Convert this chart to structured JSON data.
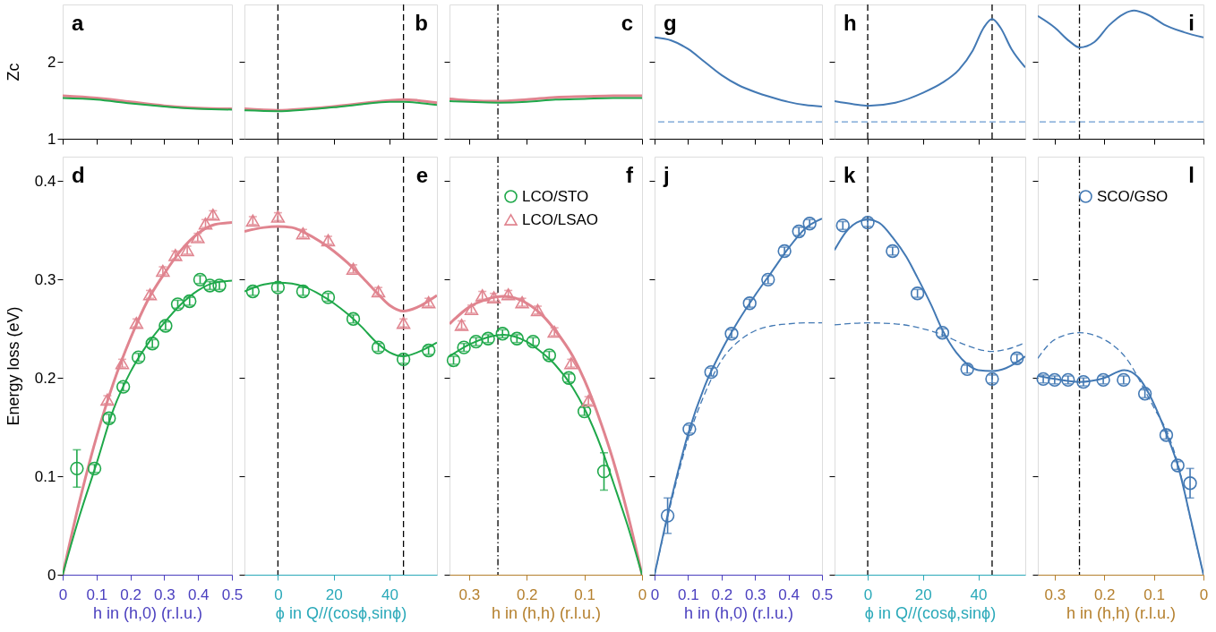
{
  "chart_data": [
    {
      "type": "line",
      "annotations": [
        "a"
      ],
      "ylabel": "Zc",
      "xlim": [
        0,
        0.5
      ],
      "xticks": [
        0,
        0.1,
        0.2,
        0.3,
        0.4,
        0.5
      ],
      "ylim": [
        1,
        2.75
      ],
      "yticks": [
        1,
        2
      ],
      "tick_labels": "y",
      "grid": false,
      "legend": false,
      "series": [
        {
          "color": "#e0848f",
          "x": [
            0,
            0.1,
            0.2,
            0.3,
            0.4,
            0.5
          ],
          "values": [
            1.56,
            1.53,
            1.48,
            1.43,
            1.4,
            1.39
          ]
        },
        {
          "color": "#1fa84a",
          "x": [
            0,
            0.1,
            0.2,
            0.3,
            0.4,
            0.5
          ],
          "values": [
            1.53,
            1.51,
            1.46,
            1.42,
            1.39,
            1.38
          ]
        }
      ]
    },
    {
      "type": "line",
      "annotations": [
        "b"
      ],
      "xlim": [
        -12,
        57
      ],
      "xticks": [
        0,
        20,
        40
      ],
      "ylim": [
        1,
        2.75
      ],
      "yticks": [
        1,
        2
      ],
      "tick_labels": false,
      "grid": false,
      "legend": false,
      "ref_lines": [
        {
          "axis": "x",
          "value": 0,
          "color": "#000000",
          "line_style": "dashed"
        },
        {
          "axis": "x",
          "value": 45,
          "color": "#000000",
          "line_style": "dashed"
        }
      ],
      "series": [
        {
          "color": "#e0848f",
          "x": [
            -12,
            0,
            10,
            20,
            30,
            40,
            45,
            50,
            57
          ],
          "values": [
            1.39,
            1.37,
            1.39,
            1.42,
            1.46,
            1.5,
            1.51,
            1.5,
            1.47
          ]
        },
        {
          "color": "#1fa84a",
          "x": [
            -12,
            0,
            10,
            20,
            30,
            40,
            45,
            50,
            57
          ],
          "values": [
            1.37,
            1.36,
            1.38,
            1.41,
            1.45,
            1.48,
            1.48,
            1.47,
            1.44
          ]
        }
      ]
    },
    {
      "type": "line",
      "annotations": [
        "c"
      ],
      "xlim": [
        0.334,
        0
      ],
      "xticks": [
        0.3,
        0.2,
        0.1,
        0
      ],
      "ylim": [
        1,
        2.75
      ],
      "yticks": [
        1,
        2
      ],
      "tick_labels": false,
      "grid": false,
      "legend": false,
      "ref_lines": [
        {
          "axis": "x",
          "value": 0.25,
          "color": "#000000",
          "line_style": "dashdot"
        }
      ],
      "series": [
        {
          "color": "#e0848f",
          "x": [
            0.334,
            0.3,
            0.25,
            0.2,
            0.15,
            0.1,
            0.05,
            0
          ],
          "values": [
            1.52,
            1.5,
            1.49,
            1.51,
            1.54,
            1.55,
            1.56,
            1.56
          ]
        },
        {
          "color": "#1fa84a",
          "x": [
            0.334,
            0.3,
            0.25,
            0.2,
            0.15,
            0.1,
            0.05,
            0
          ],
          "values": [
            1.49,
            1.48,
            1.47,
            1.48,
            1.51,
            1.52,
            1.53,
            1.53
          ]
        }
      ]
    },
    {
      "type": "line",
      "annotations": [
        "g"
      ],
      "xlim": [
        0,
        0.5
      ],
      "xticks": [
        0,
        0.1,
        0.2,
        0.3,
        0.4,
        0.5
      ],
      "ylim": [
        1,
        2.75
      ],
      "yticks": [
        1,
        2
      ],
      "tick_labels": false,
      "grid": false,
      "legend": false,
      "ref_lines": [
        {
          "axis": "y",
          "value": 1.22,
          "color": "#6a9bd1",
          "line_style": "dashed"
        }
      ],
      "series": [
        {
          "color": "#4379b4",
          "x": [
            0,
            0.05,
            0.1,
            0.15,
            0.2,
            0.25,
            0.3,
            0.35,
            0.4,
            0.45,
            0.5
          ],
          "values": [
            2.32,
            2.28,
            2.17,
            2.0,
            1.83,
            1.7,
            1.61,
            1.54,
            1.48,
            1.44,
            1.42
          ]
        }
      ]
    },
    {
      "type": "line",
      "annotations": [
        "h"
      ],
      "xlim": [
        -12,
        57
      ],
      "xticks": [
        0,
        20,
        40
      ],
      "ylim": [
        1,
        2.75
      ],
      "yticks": [
        1,
        2
      ],
      "tick_labels": false,
      "grid": false,
      "legend": false,
      "ref_lines": [
        {
          "axis": "x",
          "value": 0,
          "color": "#000000",
          "line_style": "dashed"
        },
        {
          "axis": "x",
          "value": 45,
          "color": "#000000",
          "line_style": "dashed"
        },
        {
          "axis": "y",
          "value": 1.22,
          "color": "#6a9bd1",
          "line_style": "dashed"
        }
      ],
      "series": [
        {
          "color": "#4379b4",
          "x": [
            -12,
            -5,
            0,
            10,
            20,
            27,
            33,
            38,
            42,
            45,
            48,
            52,
            57
          ],
          "values": [
            1.49,
            1.45,
            1.43,
            1.47,
            1.6,
            1.73,
            1.9,
            2.15,
            2.45,
            2.56,
            2.45,
            2.17,
            1.93
          ]
        }
      ]
    },
    {
      "type": "line",
      "annotations": [
        "i"
      ],
      "xlim": [
        0.334,
        0
      ],
      "xticks": [
        0.3,
        0.2,
        0.1,
        0
      ],
      "ylim": [
        1,
        2.75
      ],
      "yticks": [
        1,
        2
      ],
      "tick_labels": false,
      "grid": false,
      "legend": false,
      "ref_lines": [
        {
          "axis": "x",
          "value": 0.25,
          "color": "#000000",
          "line_style": "dashdot"
        },
        {
          "axis": "y",
          "value": 1.22,
          "color": "#6a9bd1",
          "line_style": "dashed"
        }
      ],
      "series": [
        {
          "color": "#4379b4",
          "x": [
            0.334,
            0.3,
            0.27,
            0.25,
            0.22,
            0.19,
            0.16,
            0.14,
            0.11,
            0.08,
            0.04,
            0
          ],
          "values": [
            2.6,
            2.45,
            2.27,
            2.19,
            2.26,
            2.48,
            2.63,
            2.67,
            2.61,
            2.49,
            2.39,
            2.32
          ]
        }
      ]
    },
    {
      "type": "scatter",
      "annotations": [
        "d"
      ],
      "ylabel": "Energy loss (eV)",
      "xlabel": "h in (h,0) (r.l.u.)",
      "xlim": [
        0,
        0.5
      ],
      "xticks": [
        0,
        0.1,
        0.2,
        0.3,
        0.4,
        0.5
      ],
      "ylim": [
        0,
        0.425
      ],
      "yticks": [
        0,
        0.1,
        0.2,
        0.3,
        0.4
      ],
      "grid": false,
      "legend": false,
      "series": [
        {
          "type": "line",
          "color": "#e0848f",
          "x": [
            0,
            0.05,
            0.1,
            0.15,
            0.2,
            0.25,
            0.3,
            0.35,
            0.4,
            0.45,
            0.5
          ],
          "values": [
            0,
            0.075,
            0.14,
            0.195,
            0.24,
            0.278,
            0.306,
            0.33,
            0.347,
            0.356,
            0.358
          ]
        },
        {
          "type": "line",
          "color": "#1fa84a",
          "x": [
            0,
            0.05,
            0.1,
            0.15,
            0.2,
            0.25,
            0.3,
            0.35,
            0.4,
            0.45,
            0.5
          ],
          "values": [
            0,
            0.06,
            0.113,
            0.168,
            0.206,
            0.234,
            0.256,
            0.275,
            0.289,
            0.297,
            0.299
          ]
        },
        {
          "type": "scatter",
          "marker": "triangle",
          "color": "#e0848f",
          "x": [
            0.132,
            0.176,
            0.218,
            0.258,
            0.296,
            0.333,
            0.368,
            0.399,
            0.422,
            0.444
          ],
          "values": [
            0.178,
            0.215,
            0.256,
            0.285,
            0.309,
            0.325,
            0.33,
            0.343,
            0.357,
            0.366
          ],
          "errors": [
            0.004,
            0.004,
            0.004,
            0.004,
            0.004,
            0.004,
            0.004,
            0.004,
            0.004,
            0.004
          ]
        },
        {
          "type": "scatter",
          "marker": "circle",
          "color": "#1fa84a",
          "x": [
            0.042,
            0.094,
            0.137,
            0.179,
            0.224,
            0.265,
            0.304,
            0.34,
            0.375,
            0.406,
            0.435,
            0.463
          ],
          "values": [
            0.108,
            0.108,
            0.159,
            0.191,
            0.221,
            0.235,
            0.253,
            0.275,
            0.278,
            0.3,
            0.294,
            0.294
          ],
          "errors": [
            0.019,
            0.004,
            0.004,
            0.004,
            0.004,
            0.004,
            0.004,
            0.004,
            0.004,
            0.004,
            0.004,
            0.004
          ]
        }
      ]
    },
    {
      "type": "scatter",
      "annotations": [
        "e"
      ],
      "xlabel": "ϕ in Q//(cosϕ,sinϕ)",
      "xlim": [
        -12,
        57
      ],
      "xticks": [
        0,
        20,
        40
      ],
      "ylim": [
        0,
        0.425
      ],
      "yticks": [
        0,
        0.1,
        0.2,
        0.3,
        0.4
      ],
      "tick_labels": "x",
      "grid": false,
      "legend": false,
      "ref_lines": [
        {
          "axis": "x",
          "value": 0,
          "color": "#000000",
          "line_style": "dashed"
        },
        {
          "axis": "x",
          "value": 45,
          "color": "#000000",
          "line_style": "dashed"
        }
      ],
      "series": [
        {
          "type": "line",
          "color": "#e0848f",
          "x": [
            -12,
            -5,
            0,
            5,
            10,
            15,
            20,
            25,
            30,
            35,
            40,
            45,
            50,
            57
          ],
          "values": [
            0.349,
            0.353,
            0.354,
            0.353,
            0.347,
            0.339,
            0.329,
            0.317,
            0.303,
            0.288,
            0.274,
            0.268,
            0.272,
            0.284
          ]
        },
        {
          "type": "line",
          "color": "#1fa84a",
          "x": [
            -12,
            -5,
            0,
            5,
            10,
            15,
            20,
            25,
            30,
            35,
            40,
            45,
            50,
            57
          ],
          "values": [
            0.288,
            0.295,
            0.297,
            0.296,
            0.292,
            0.285,
            0.276,
            0.265,
            0.252,
            0.237,
            0.226,
            0.222,
            0.226,
            0.236
          ]
        },
        {
          "type": "scatter",
          "marker": "triangle",
          "color": "#e0848f",
          "x": [
            -9,
            0,
            9,
            18,
            27,
            36,
            45,
            54
          ],
          "values": [
            0.36,
            0.364,
            0.347,
            0.34,
            0.311,
            0.288,
            0.256,
            0.277
          ],
          "errors": [
            0.004,
            0.004,
            0.004,
            0.004,
            0.004,
            0.004,
            0.004,
            0.004
          ]
        },
        {
          "type": "scatter",
          "marker": "circle",
          "color": "#1fa84a",
          "x": [
            -9,
            0,
            9,
            18,
            27,
            36,
            45,
            54
          ],
          "values": [
            0.288,
            0.292,
            0.288,
            0.282,
            0.26,
            0.231,
            0.219,
            0.228
          ],
          "errors": [
            0.004,
            0.004,
            0.004,
            0.004,
            0.004,
            0.004,
            0.004,
            0.004
          ]
        }
      ]
    },
    {
      "type": "scatter",
      "annotations": [
        "f"
      ],
      "xlabel": "h in (h,h) (r.l.u.)",
      "xlim": [
        0.334,
        0
      ],
      "xticks": [
        0.3,
        0.2,
        0.1,
        0
      ],
      "ylim": [
        0,
        0.425
      ],
      "yticks": [
        0,
        0.1,
        0.2,
        0.3,
        0.4
      ],
      "tick_labels": "x",
      "grid": false,
      "legend": "top right",
      "ref_lines": [
        {
          "axis": "x",
          "value": 0.25,
          "color": "#000000",
          "line_style": "dashdot"
        }
      ],
      "series": [
        {
          "type": "line",
          "color": "#e0848f",
          "x": [
            0.334,
            0.3,
            0.27,
            0.24,
            0.2,
            0.17,
            0.15,
            0.12,
            0.1,
            0.07,
            0.05,
            0.025,
            0
          ],
          "values": [
            0.255,
            0.272,
            0.28,
            0.283,
            0.276,
            0.262,
            0.248,
            0.222,
            0.198,
            0.152,
            0.116,
            0.062,
            0
          ]
        },
        {
          "type": "line",
          "color": "#1fa84a",
          "x": [
            0.334,
            0.3,
            0.27,
            0.24,
            0.2,
            0.17,
            0.15,
            0.12,
            0.1,
            0.07,
            0.05,
            0.025,
            0
          ],
          "values": [
            0.222,
            0.234,
            0.241,
            0.244,
            0.237,
            0.224,
            0.213,
            0.19,
            0.169,
            0.128,
            0.094,
            0.05,
            0
          ]
        },
        {
          "type": "scatter",
          "name": "LCO/STO",
          "marker": "circle",
          "color": "#1fa84a",
          "x": [
            0.327,
            0.309,
            0.288,
            0.267,
            0.242,
            0.217,
            0.189,
            0.161,
            0.127,
            0.1,
            0.066
          ],
          "values": [
            0.218,
            0.231,
            0.237,
            0.24,
            0.245,
            0.24,
            0.237,
            0.223,
            0.2,
            0.166,
            0.105
          ],
          "errors": [
            0.004,
            0.004,
            0.004,
            0.004,
            0.004,
            0.004,
            0.004,
            0.004,
            0.004,
            0.004,
            0.019
          ]
        },
        {
          "type": "scatter",
          "name": "LCO/LSAO",
          "marker": "triangle",
          "color": "#e0848f",
          "x": [
            0.313,
            0.296,
            0.277,
            0.257,
            0.232,
            0.208,
            0.181,
            0.152,
            0.123,
            0.093
          ],
          "values": [
            0.254,
            0.27,
            0.284,
            0.282,
            0.285,
            0.277,
            0.269,
            0.247,
            0.215,
            0.177
          ],
          "errors": [
            0.004,
            0.004,
            0.004,
            0.004,
            0.004,
            0.004,
            0.004,
            0.004,
            0.004,
            0.004
          ]
        }
      ]
    },
    {
      "type": "scatter",
      "annotations": [
        "j"
      ],
      "xlabel": "h in (h,0) (r.l.u.)",
      "xlim": [
        0,
        0.5
      ],
      "xticks": [
        0,
        0.1,
        0.2,
        0.3,
        0.4,
        0.5
      ],
      "ylim": [
        0,
        0.425
      ],
      "yticks": [
        0,
        0.1,
        0.2,
        0.3,
        0.4
      ],
      "tick_labels": "x",
      "grid": false,
      "legend": false,
      "series": [
        {
          "type": "line",
          "line_style": "dashed",
          "color": "#4379b4",
          "x": [
            0,
            0.05,
            0.1,
            0.15,
            0.2,
            0.25,
            0.3,
            0.35,
            0.4,
            0.45,
            0.5
          ],
          "values": [
            0,
            0.074,
            0.138,
            0.184,
            0.218,
            0.237,
            0.248,
            0.253,
            0.255,
            0.256,
            0.256
          ]
        },
        {
          "type": "line",
          "color": "#4379b4",
          "x": [
            0,
            0.05,
            0.1,
            0.15,
            0.2,
            0.25,
            0.3,
            0.35,
            0.4,
            0.45,
            0.5
          ],
          "values": [
            0,
            0.077,
            0.143,
            0.192,
            0.228,
            0.258,
            0.284,
            0.308,
            0.332,
            0.352,
            0.362
          ]
        },
        {
          "type": "scatter",
          "marker": "circle",
          "color": "#4379b4",
          "x": [
            0.039,
            0.104,
            0.169,
            0.23,
            0.284,
            0.339,
            0.388,
            0.431,
            0.463
          ],
          "values": [
            0.06,
            0.148,
            0.206,
            0.245,
            0.276,
            0.3,
            0.329,
            0.349,
            0.357
          ],
          "errors": [
            0.018,
            0.004,
            0.004,
            0.004,
            0.004,
            0.004,
            0.004,
            0.004,
            0.004
          ]
        }
      ]
    },
    {
      "type": "scatter",
      "annotations": [
        "k"
      ],
      "xlabel": "ϕ in Q//(cosϕ,sinϕ)",
      "xlim": [
        -12,
        57
      ],
      "xticks": [
        0,
        20,
        40
      ],
      "ylim": [
        0,
        0.425
      ],
      "yticks": [
        0,
        0.1,
        0.2,
        0.3,
        0.4
      ],
      "tick_labels": "x",
      "grid": false,
      "legend": false,
      "ref_lines": [
        {
          "axis": "x",
          "value": 0,
          "color": "#000000",
          "line_style": "dashed"
        },
        {
          "axis": "x",
          "value": 45,
          "color": "#000000",
          "line_style": "dashed"
        }
      ],
      "series": [
        {
          "type": "line",
          "line_style": "dashed",
          "color": "#4379b4",
          "x": [
            -12,
            0,
            10,
            20,
            27,
            35,
            45,
            50,
            57
          ],
          "values": [
            0.254,
            0.256,
            0.255,
            0.25,
            0.244,
            0.234,
            0.227,
            0.229,
            0.236
          ]
        },
        {
          "type": "line",
          "color": "#4379b4",
          "x": [
            -12,
            -8,
            -4,
            0,
            4,
            9,
            14,
            18,
            23,
            27,
            32,
            36,
            40,
            45,
            50,
            57
          ],
          "values": [
            0.33,
            0.348,
            0.358,
            0.361,
            0.358,
            0.343,
            0.323,
            0.302,
            0.274,
            0.249,
            0.226,
            0.214,
            0.208,
            0.207,
            0.21,
            0.222
          ]
        },
        {
          "type": "scatter",
          "marker": "circle",
          "color": "#4379b4",
          "x": [
            -9,
            0,
            9,
            18,
            27,
            36,
            45,
            54
          ],
          "values": [
            0.355,
            0.358,
            0.329,
            0.286,
            0.246,
            0.209,
            0.199,
            0.22
          ],
          "errors": [
            0.004,
            0.004,
            0.004,
            0.004,
            0.004,
            0.004,
            0.004,
            0.004
          ]
        }
      ]
    },
    {
      "type": "scatter",
      "annotations": [
        "l"
      ],
      "xlabel": "h in (h,h) (r.l.u.)",
      "xlim": [
        0.334,
        0
      ],
      "xticks": [
        0.3,
        0.2,
        0.1,
        0
      ],
      "ylim": [
        0,
        0.425
      ],
      "yticks": [
        0,
        0.1,
        0.2,
        0.3,
        0.4
      ],
      "tick_labels": "x",
      "grid": false,
      "legend": "top right",
      "ref_lines": [
        {
          "axis": "x",
          "value": 0.25,
          "color": "#000000",
          "line_style": "dashdot"
        }
      ],
      "series": [
        {
          "type": "line",
          "line_style": "dashed",
          "color": "#4379b4",
          "x": [
            0.334,
            0.3,
            0.25,
            0.2,
            0.15,
            0.12,
            0.1,
            0.07,
            0.05,
            0.025,
            0
          ],
          "values": [
            0.22,
            0.239,
            0.246,
            0.239,
            0.216,
            0.189,
            0.17,
            0.141,
            0.11,
            0.054,
            0
          ]
        },
        {
          "type": "line",
          "color": "#4379b4",
          "x": [
            0.334,
            0.3,
            0.25,
            0.2,
            0.16,
            0.13,
            0.11,
            0.08,
            0.05,
            0.025,
            0
          ],
          "values": [
            0.202,
            0.199,
            0.196,
            0.2,
            0.208,
            0.2,
            0.184,
            0.15,
            0.108,
            0.055,
            0
          ]
        },
        {
          "type": "scatter",
          "name": "SCO/GSO",
          "marker": "circle",
          "color": "#4379b4",
          "x": [
            0.323,
            0.3,
            0.273,
            0.242,
            0.202,
            0.161,
            0.118,
            0.075,
            0.052,
            0.027
          ],
          "values": [
            0.199,
            0.198,
            0.198,
            0.196,
            0.198,
            0.198,
            0.184,
            0.142,
            0.111,
            0.093
          ],
          "errors": [
            0.004,
            0.004,
            0.004,
            0.004,
            0.004,
            0.004,
            0.004,
            0.004,
            0.004,
            0.015
          ]
        }
      ]
    }
  ]
}
